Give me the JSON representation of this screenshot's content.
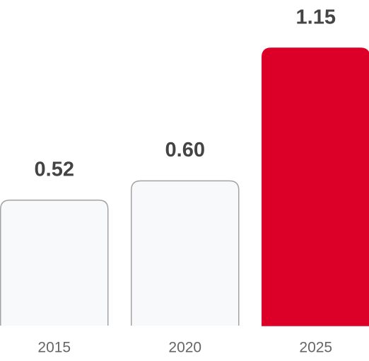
{
  "chart_data": {
    "type": "bar",
    "categories": [
      "2015",
      "2020",
      "2025"
    ],
    "values": [
      0.52,
      0.6,
      1.15
    ],
    "value_labels": [
      "0.52",
      "0.60",
      "1.15"
    ],
    "colors": [
      "#f8f9fb",
      "#f8f9fb",
      "#dc0028"
    ]
  }
}
